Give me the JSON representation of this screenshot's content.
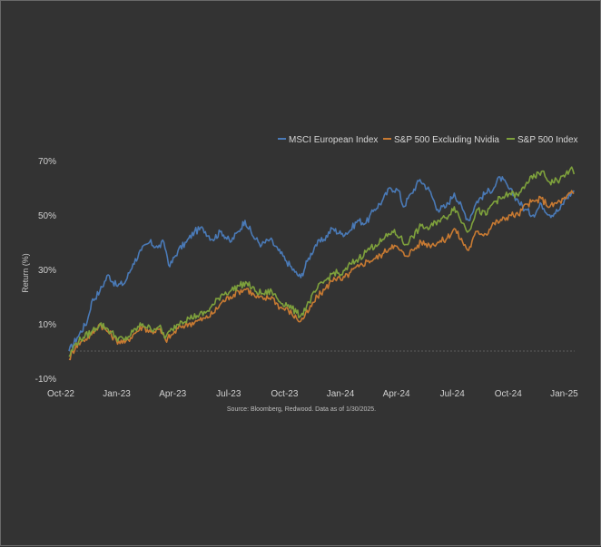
{
  "chart_data": {
    "type": "line",
    "ylabel": "Return (%)",
    "y_ticks": [
      "-10%",
      "10%",
      "30%",
      "50%",
      "70%"
    ],
    "y_tick_values": [
      -10,
      10,
      30,
      50,
      70
    ],
    "x_ticks": [
      "Oct-22",
      "Jan-23",
      "Apr-23",
      "Jul-23",
      "Oct-23",
      "Jan-24",
      "Apr-24",
      "Jul-24",
      "Oct-24",
      "Jan-25"
    ],
    "xlim": [
      "2022-10-01",
      "2025-01-31"
    ],
    "ylim": [
      -10,
      70
    ],
    "zero_line": 0,
    "grid": false,
    "legend_position": "top-right",
    "source": "Source: Bloomberg, Redwood. Data as of 1/30/2025.",
    "series": [
      {
        "name": "MSCI European Index",
        "color": "#4a7ab7",
        "points": [
          [
            "2022-10-01",
            0
          ],
          [
            "2022-10-15",
            5
          ],
          [
            "2022-11-01",
            11
          ],
          [
            "2022-11-08",
            18
          ],
          [
            "2022-11-22",
            22
          ],
          [
            "2022-12-06",
            28
          ],
          [
            "2022-12-20",
            24
          ],
          [
            "2023-01-03",
            25
          ],
          [
            "2023-01-17",
            32
          ],
          [
            "2023-01-31",
            37
          ],
          [
            "2023-02-14",
            40
          ],
          [
            "2023-02-28",
            38
          ],
          [
            "2023-03-10",
            40
          ],
          [
            "2023-03-20",
            31
          ],
          [
            "2023-04-03",
            37
          ],
          [
            "2023-04-17",
            40
          ],
          [
            "2023-05-01",
            44
          ],
          [
            "2023-05-15",
            45
          ],
          [
            "2023-05-31",
            41
          ],
          [
            "2023-06-15",
            44
          ],
          [
            "2023-06-30",
            40
          ],
          [
            "2023-07-14",
            44
          ],
          [
            "2023-07-25",
            48
          ],
          [
            "2023-08-08",
            42
          ],
          [
            "2023-08-22",
            39
          ],
          [
            "2023-09-05",
            41
          ],
          [
            "2023-09-19",
            37
          ],
          [
            "2023-10-03",
            33
          ],
          [
            "2023-10-17",
            29
          ],
          [
            "2023-10-27",
            27
          ],
          [
            "2023-11-07",
            33
          ],
          [
            "2023-11-21",
            39
          ],
          [
            "2023-12-05",
            41
          ],
          [
            "2023-12-19",
            45
          ],
          [
            "2024-01-03",
            43
          ],
          [
            "2024-01-17",
            44
          ],
          [
            "2024-01-31",
            48
          ],
          [
            "2024-02-14",
            47
          ],
          [
            "2024-02-28",
            52
          ],
          [
            "2024-03-12",
            55
          ],
          [
            "2024-03-26",
            60
          ],
          [
            "2024-04-09",
            59
          ],
          [
            "2024-04-17",
            53
          ],
          [
            "2024-05-01",
            58
          ],
          [
            "2024-05-15",
            63
          ],
          [
            "2024-05-31",
            59
          ],
          [
            "2024-06-14",
            52
          ],
          [
            "2024-06-28",
            53
          ],
          [
            "2024-07-12",
            58
          ],
          [
            "2024-07-26",
            52
          ],
          [
            "2024-08-05",
            48
          ],
          [
            "2024-08-19",
            55
          ],
          [
            "2024-09-03",
            58
          ],
          [
            "2024-09-17",
            60
          ],
          [
            "2024-09-27",
            64
          ],
          [
            "2024-10-11",
            60
          ],
          [
            "2024-10-25",
            56
          ],
          [
            "2024-11-08",
            52
          ],
          [
            "2024-11-22",
            50
          ],
          [
            "2024-12-06",
            54
          ],
          [
            "2024-12-20",
            50
          ],
          [
            "2025-01-06",
            52
          ],
          [
            "2025-01-16",
            56
          ],
          [
            "2025-01-30",
            59
          ]
        ]
      },
      {
        "name": "S&P 500 Excluding Nvidia",
        "color": "#c87a32",
        "points": [
          [
            "2022-10-01",
            -3
          ],
          [
            "2022-10-13",
            2
          ],
          [
            "2022-10-25",
            4
          ],
          [
            "2022-11-08",
            6
          ],
          [
            "2022-11-22",
            10
          ],
          [
            "2022-12-06",
            7
          ],
          [
            "2022-12-20",
            4
          ],
          [
            "2023-01-03",
            3
          ],
          [
            "2023-01-17",
            6
          ],
          [
            "2023-02-02",
            9
          ],
          [
            "2023-02-16",
            7
          ],
          [
            "2023-03-02",
            8
          ],
          [
            "2023-03-13",
            4
          ],
          [
            "2023-03-24",
            6
          ],
          [
            "2023-04-07",
            9
          ],
          [
            "2023-04-21",
            10
          ],
          [
            "2023-05-05",
            11
          ],
          [
            "2023-05-19",
            12
          ],
          [
            "2023-06-02",
            14
          ],
          [
            "2023-06-16",
            18
          ],
          [
            "2023-06-30",
            20
          ],
          [
            "2023-07-14",
            22
          ],
          [
            "2023-07-28",
            23
          ],
          [
            "2023-08-11",
            20
          ],
          [
            "2023-08-25",
            19
          ],
          [
            "2023-09-08",
            20
          ],
          [
            "2023-09-22",
            16
          ],
          [
            "2023-10-06",
            15
          ],
          [
            "2023-10-20",
            12
          ],
          [
            "2023-10-27",
            11
          ],
          [
            "2023-11-10",
            15
          ],
          [
            "2023-11-24",
            20
          ],
          [
            "2023-12-08",
            23
          ],
          [
            "2023-12-22",
            27
          ],
          [
            "2024-01-05",
            26
          ],
          [
            "2024-01-19",
            29
          ],
          [
            "2024-02-02",
            31
          ],
          [
            "2024-02-16",
            33
          ],
          [
            "2024-03-01",
            34
          ],
          [
            "2024-03-15",
            36
          ],
          [
            "2024-03-29",
            39
          ],
          [
            "2024-04-12",
            37
          ],
          [
            "2024-04-19",
            35
          ],
          [
            "2024-05-03",
            37
          ],
          [
            "2024-05-17",
            40
          ],
          [
            "2024-05-31",
            39
          ],
          [
            "2024-06-14",
            40
          ],
          [
            "2024-06-28",
            41
          ],
          [
            "2024-07-12",
            45
          ],
          [
            "2024-07-26",
            40
          ],
          [
            "2024-08-05",
            37
          ],
          [
            "2024-08-19",
            44
          ],
          [
            "2024-09-03",
            43
          ],
          [
            "2024-09-17",
            47
          ],
          [
            "2024-09-30",
            48
          ],
          [
            "2024-10-14",
            50
          ],
          [
            "2024-10-28",
            50
          ],
          [
            "2024-11-11",
            54
          ],
          [
            "2024-11-25",
            55
          ],
          [
            "2024-12-06",
            56
          ],
          [
            "2024-12-20",
            53
          ],
          [
            "2025-01-06",
            55
          ],
          [
            "2025-01-16",
            56
          ],
          [
            "2025-01-24",
            58
          ],
          [
            "2025-01-30",
            58
          ]
        ]
      },
      {
        "name": "S&P 500 Index",
        "color": "#7ea13c",
        "points": [
          [
            "2022-10-01",
            -2
          ],
          [
            "2022-10-13",
            3
          ],
          [
            "2022-10-25",
            5
          ],
          [
            "2022-11-08",
            7
          ],
          [
            "2022-11-22",
            10
          ],
          [
            "2022-12-06",
            8
          ],
          [
            "2022-12-20",
            5
          ],
          [
            "2023-01-03",
            4
          ],
          [
            "2023-01-17",
            7
          ],
          [
            "2023-02-02",
            10
          ],
          [
            "2023-02-16",
            8
          ],
          [
            "2023-03-02",
            9
          ],
          [
            "2023-03-13",
            5
          ],
          [
            "2023-03-24",
            8
          ],
          [
            "2023-04-07",
            11
          ],
          [
            "2023-04-21",
            12
          ],
          [
            "2023-05-05",
            13
          ],
          [
            "2023-05-19",
            14
          ],
          [
            "2023-06-02",
            17
          ],
          [
            "2023-06-16",
            21
          ],
          [
            "2023-06-30",
            22
          ],
          [
            "2023-07-14",
            24
          ],
          [
            "2023-07-28",
            25
          ],
          [
            "2023-08-11",
            22
          ],
          [
            "2023-08-25",
            21
          ],
          [
            "2023-09-08",
            22
          ],
          [
            "2023-09-22",
            18
          ],
          [
            "2023-10-06",
            17
          ],
          [
            "2023-10-20",
            14
          ],
          [
            "2023-10-27",
            13
          ],
          [
            "2023-11-10",
            18
          ],
          [
            "2023-11-24",
            23
          ],
          [
            "2023-12-08",
            26
          ],
          [
            "2023-12-22",
            29
          ],
          [
            "2024-01-05",
            28
          ],
          [
            "2024-01-19",
            32
          ],
          [
            "2024-02-02",
            34
          ],
          [
            "2024-02-16",
            37
          ],
          [
            "2024-03-01",
            39
          ],
          [
            "2024-03-15",
            41
          ],
          [
            "2024-03-29",
            44
          ],
          [
            "2024-04-12",
            42
          ],
          [
            "2024-04-19",
            39
          ],
          [
            "2024-05-03",
            42
          ],
          [
            "2024-05-17",
            46
          ],
          [
            "2024-05-31",
            45
          ],
          [
            "2024-06-14",
            48
          ],
          [
            "2024-06-28",
            49
          ],
          [
            "2024-07-12",
            53
          ],
          [
            "2024-07-26",
            47
          ],
          [
            "2024-08-05",
            44
          ],
          [
            "2024-08-19",
            52
          ],
          [
            "2024-09-03",
            50
          ],
          [
            "2024-09-17",
            55
          ],
          [
            "2024-09-30",
            56
          ],
          [
            "2024-10-14",
            58
          ],
          [
            "2024-10-28",
            57
          ],
          [
            "2024-11-11",
            62
          ],
          [
            "2024-11-25",
            64
          ],
          [
            "2024-12-06",
            66
          ],
          [
            "2024-12-20",
            62
          ],
          [
            "2025-01-06",
            63
          ],
          [
            "2025-01-16",
            65
          ],
          [
            "2025-01-24",
            67
          ],
          [
            "2025-01-30",
            65
          ]
        ]
      }
    ]
  }
}
